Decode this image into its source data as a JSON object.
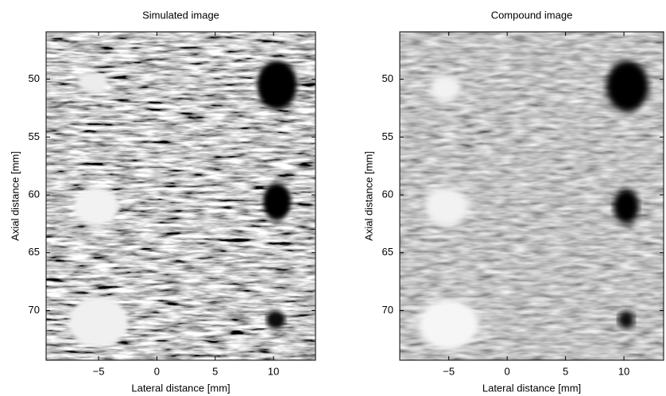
{
  "chart_data": [
    {
      "type": "image",
      "title": "Simulated image",
      "xlabel": "Lateral distance [mm]",
      "ylabel": "Axial distance [mm]",
      "xlim": [
        -9.5,
        13.6
      ],
      "ylim": [
        74.3,
        45.9
      ],
      "xticks": [
        {
          "value": -5,
          "label": "−5"
        },
        0,
        5,
        10
      ],
      "yticks": [
        50,
        55,
        60,
        65,
        70
      ],
      "targets": [
        {
          "x": -5.5,
          "y": 50.3,
          "rx": 1.3,
          "ry": 0.9,
          "color": "#ececec"
        },
        {
          "x": -5.2,
          "y": 61,
          "rx": 1.9,
          "ry": 1.7,
          "color": "#f2f2f2"
        },
        {
          "x": -5,
          "y": 71,
          "rx": 2.6,
          "ry": 2.2,
          "color": "#f0f0f0"
        },
        {
          "x": 10.3,
          "y": 50.5,
          "rx": 1.7,
          "ry": 2.1,
          "color": "#000000"
        },
        {
          "x": 10.3,
          "y": 60.6,
          "rx": 1.2,
          "ry": 1.6,
          "color": "#000000"
        },
        {
          "x": 10.2,
          "y": 70.8,
          "rx": 0.8,
          "ry": 0.8,
          "color": "#111111"
        }
      ]
    },
    {
      "type": "image",
      "title": "Compound image",
      "xlabel": "Lateral distance [mm]",
      "ylabel": "Axial distance [mm]",
      "xlim": [
        -9.2,
        13.4
      ],
      "ylim": [
        74.3,
        45.9
      ],
      "xticks": [
        {
          "value": -5,
          "label": "−5"
        },
        0,
        5,
        10
      ],
      "yticks": [
        50,
        55,
        60,
        65,
        70
      ],
      "targets": [
        {
          "x": -5.3,
          "y": 50.8,
          "rx": 1.3,
          "ry": 1.2,
          "color": "#f2f2f2"
        },
        {
          "x": -5.2,
          "y": 61,
          "rx": 1.8,
          "ry": 1.7,
          "color": "#f2f2f2"
        },
        {
          "x": -5,
          "y": 71.2,
          "rx": 2.6,
          "ry": 2.2,
          "color": "#f6f6f6"
        },
        {
          "x": 10.3,
          "y": 50.6,
          "rx": 1.8,
          "ry": 2.2,
          "color": "#000000"
        },
        {
          "x": 10.2,
          "y": 61,
          "rx": 1.1,
          "ry": 1.5,
          "color": "#050505"
        },
        {
          "x": 10.2,
          "y": 70.8,
          "rx": 0.7,
          "ry": 0.8,
          "color": "#111111"
        }
      ]
    }
  ]
}
